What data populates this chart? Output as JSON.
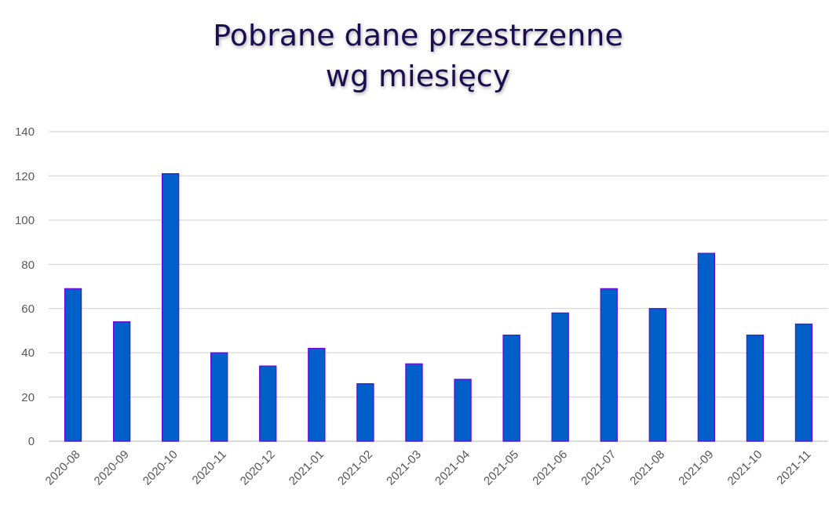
{
  "chart_data": {
    "type": "bar",
    "title": "Pobrane dane przestrzenne\nwg miesięcy",
    "categories": [
      "2020-08",
      "2020-09",
      "2020-10",
      "2020-11",
      "2020-12",
      "2021-01",
      "2021-02",
      "2021-03",
      "2021-04",
      "2021-05",
      "2021-06",
      "2021-07",
      "2021-08",
      "2021-09",
      "2021-10",
      "2021-11"
    ],
    "values": [
      69,
      54,
      121,
      40,
      34,
      42,
      26,
      35,
      28,
      48,
      58,
      69,
      60,
      85,
      48,
      53
    ],
    "color": "#005fc8",
    "ylim": [
      0,
      140
    ],
    "yticks": [
      0,
      20,
      40,
      60,
      80,
      100,
      120,
      140
    ],
    "grid": "y"
  }
}
